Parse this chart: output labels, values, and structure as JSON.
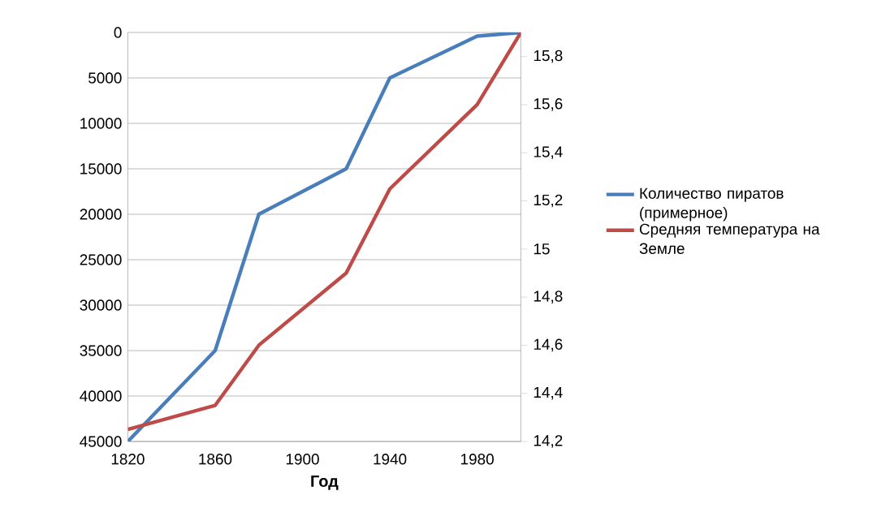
{
  "chart_data": {
    "type": "line",
    "xlabel": "Год",
    "x": [
      1820,
      1860,
      1880,
      1920,
      1940,
      1980,
      2000
    ],
    "xlim": [
      1820,
      2000
    ],
    "xticks": [
      1820,
      1860,
      1900,
      1940,
      1980
    ],
    "ylim": [
      45000,
      0
    ],
    "yticks": [
      0,
      5000,
      10000,
      15000,
      20000,
      25000,
      30000,
      35000,
      40000,
      45000
    ],
    "y2lim": [
      14.2,
      15.9
    ],
    "y2ticks": [
      {
        "value": 14.2,
        "label": "14,2"
      },
      {
        "value": 14.4,
        "label": "14,4"
      },
      {
        "value": 14.6,
        "label": "14,6"
      },
      {
        "value": 14.8,
        "label": "14,8"
      },
      15,
      {
        "value": 15.2,
        "label": "15,2"
      },
      {
        "value": 15.4,
        "label": "15,4"
      },
      {
        "value": 15.6,
        "label": "15,6"
      },
      {
        "value": 15.8,
        "label": "15,8"
      }
    ],
    "grid": "y",
    "legend": "right",
    "marker": "none",
    "line_style": "solid",
    "series": [
      {
        "name": "Количество пиратов (примерное)",
        "color": "#4a7ebb",
        "values": [
          45000,
          35000,
          20000,
          15000,
          5000,
          400,
          0
        ]
      },
      {
        "name": "Средняя температура на Земле",
        "color": "#be4b48",
        "axis": "y2",
        "values": [
          14.25,
          14.35,
          14.6,
          14.9,
          15.25,
          15.6,
          15.9
        ]
      }
    ]
  }
}
